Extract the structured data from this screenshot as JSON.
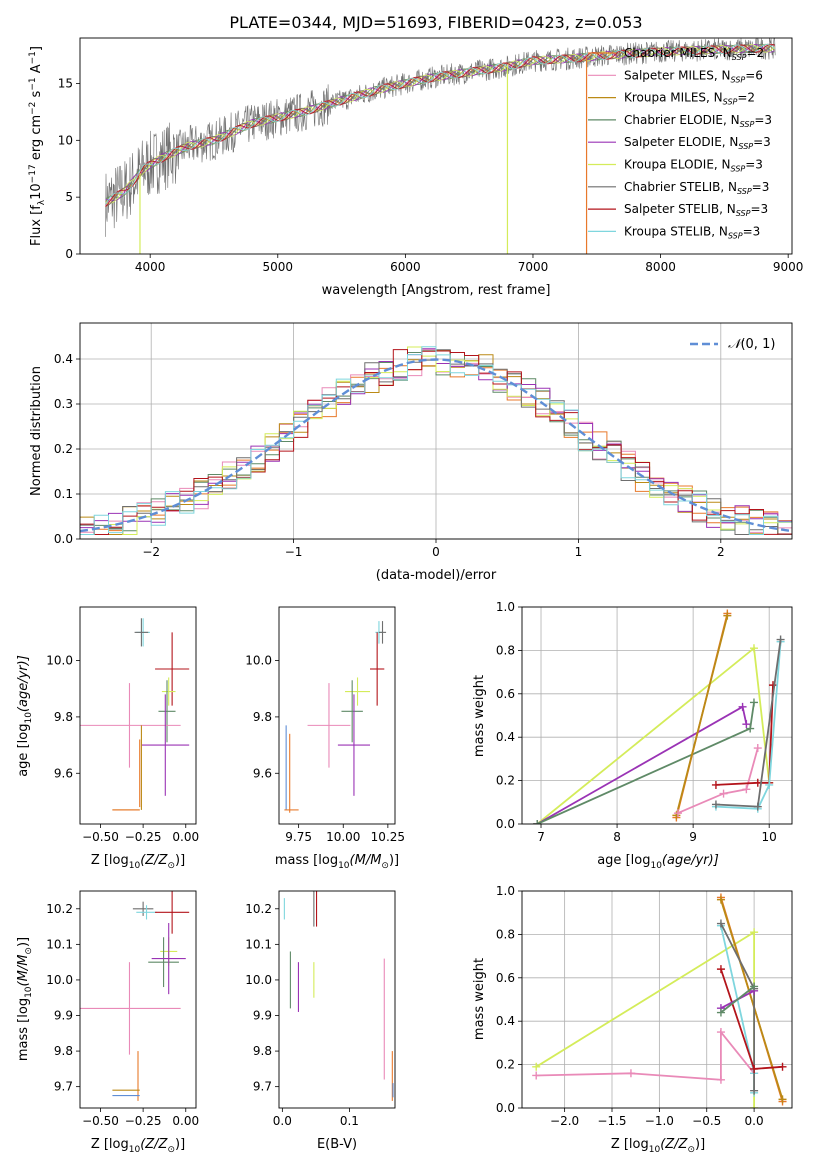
{
  "figure_title": "PLATE=0344, MJD=51693, FIBERID=0423, z=0.053",
  "colors": {
    "orange": "#e8792b",
    "pink": "#e98ab8",
    "olive": "#bb8a16",
    "green": "#5f8a67",
    "purple": "#9a33b5",
    "yellowgreen": "#d4ec5a",
    "gray": "#6e6e6e",
    "darkred": "#b3141b",
    "cyan": "#7fd6de",
    "blue": "#5f8ed6",
    "grid": "#b0b0b0"
  },
  "chart_data": [
    {
      "id": "spectrum",
      "type": "line",
      "xlabel": "wavelength [Angstrom, rest frame]",
      "ylabel": "Flux [f",
      "xlim": [
        3450,
        9030
      ],
      "ylim": [
        0,
        19
      ],
      "xticks": [
        4000,
        5000,
        6000,
        7000,
        8000,
        9000
      ],
      "yticks": [
        0,
        5,
        10,
        15
      ],
      "grid": false,
      "legend_position": "upper-right",
      "legend": [
        {
          "label": "Chabrier MILES, N",
          "sub": "SSP",
          "tail": "=2",
          "color": "orange"
        },
        {
          "label": "Salpeter MILES, N",
          "sub": "SSP",
          "tail": "=6",
          "color": "pink"
        },
        {
          "label": "Kroupa MILES, N",
          "sub": "SSP",
          "tail": "=2",
          "color": "olive"
        },
        {
          "label": "Chabrier ELODIE, N",
          "sub": "SSP",
          "tail": "=3",
          "color": "green"
        },
        {
          "label": "Salpeter ELODIE, N",
          "sub": "SSP",
          "tail": "=3",
          "color": "purple"
        },
        {
          "label": "Kroupa ELODIE, N",
          "sub": "SSP",
          "tail": "=3",
          "color": "yellowgreen"
        },
        {
          "label": "Chabrier STELIB, N",
          "sub": "SSP",
          "tail": "=3",
          "color": "gray"
        },
        {
          "label": "Salpeter STELIB, N",
          "sub": "SSP",
          "tail": "=3",
          "color": "darkred"
        },
        {
          "label": "Kroupa STELIB, N",
          "sub": "SSP",
          "tail": "=3",
          "color": "cyan"
        }
      ],
      "continuum": [
        [
          3650,
          4.5
        ],
        [
          3800,
          5.5
        ],
        [
          3950,
          7.5
        ],
        [
          4100,
          8.5
        ],
        [
          4300,
          9.5
        ],
        [
          4500,
          10.0
        ],
        [
          4800,
          11.5
        ],
        [
          5000,
          12.0
        ],
        [
          5200,
          12.5
        ],
        [
          5500,
          13.5
        ],
        [
          5800,
          14.5
        ],
        [
          6000,
          15.0
        ],
        [
          6200,
          15.5
        ],
        [
          6500,
          16.0
        ],
        [
          6800,
          16.5
        ],
        [
          7000,
          17.0
        ],
        [
          7300,
          17.2
        ],
        [
          7600,
          17.5
        ],
        [
          8000,
          17.8
        ],
        [
          8500,
          18.0
        ],
        [
          8800,
          18.1
        ]
      ],
      "drops": [
        {
          "x": 3920,
          "color": "yellowgreen"
        },
        {
          "x": 6800,
          "color": "yellowgreen"
        },
        {
          "x": 7420,
          "color": "orange"
        }
      ]
    },
    {
      "id": "residual-histogram",
      "type": "histogram",
      "xlabel": "(data-model)/error",
      "ylabel": "Normed distribution",
      "xlim": [
        -2.5,
        2.5
      ],
      "ylim": [
        0,
        0.48
      ],
      "xticks": [
        -2,
        -1,
        0,
        1,
        2
      ],
      "yticks": [
        0.0,
        0.1,
        0.2,
        0.3,
        0.4
      ],
      "grid": true,
      "legend_position": "upper-right",
      "legend_label": "(0, 1)",
      "bin_width": 0.1,
      "series_colors": [
        "orange",
        "pink",
        "olive",
        "green",
        "purple",
        "yellowgreen",
        "gray",
        "darkred",
        "cyan"
      ]
    },
    {
      "id": "age-vs-Z",
      "type": "errorbar",
      "xlabel": "Z [log",
      "xlabel_sub": "10",
      "xlabel_tail": "(Z/Z",
      "xlabel_end": ")]",
      "ylabel": "age  [log",
      "ylabel_sub": "10",
      "ylabel_tail": "(age/yr)]",
      "xlim": [
        -0.62,
        0.06
      ],
      "ylim": [
        9.42,
        10.19
      ],
      "xticks": [
        -0.5,
        -0.25,
        0.0
      ],
      "yticks": [
        9.6,
        9.8,
        10.0
      ],
      "grid": false,
      "points": [
        {
          "x": -0.25,
          "y": 10.1,
          "dx": 0.04,
          "dy": 0.05,
          "color": "cyan"
        },
        {
          "x": -0.26,
          "y": 10.1,
          "dx": 0.04,
          "dy": 0.05,
          "color": "gray"
        },
        {
          "x": -0.08,
          "y": 9.97,
          "dx": 0.1,
          "dy": 0.13,
          "color": "darkred"
        },
        {
          "x": -0.1,
          "y": 9.89,
          "dx": 0.04,
          "dy": 0.05,
          "color": "yellowgreen"
        },
        {
          "x": -0.11,
          "y": 9.82,
          "dx": 0.05,
          "dy": 0.11,
          "color": "green"
        },
        {
          "x": -0.33,
          "y": 9.77,
          "dx": 0.3,
          "dy": 0.15,
          "color": "pink"
        },
        {
          "x": -0.12,
          "y": 9.7,
          "dx": 0.14,
          "dy": 0.18,
          "color": "purple"
        },
        {
          "x": -0.26,
          "y": 9.62,
          "dx": 0.0,
          "dy": 0.15,
          "color": "olive"
        },
        {
          "x": -0.27,
          "y": 9.6,
          "dx": 0.0,
          "dy": 0.12,
          "color": "orange"
        },
        {
          "x": -0.35,
          "y": 9.47,
          "dx": 0.08,
          "dy": 0.0,
          "color": "olive"
        },
        {
          "x": -0.35,
          "y": 9.47,
          "dx": 0.08,
          "dy": 0.0,
          "color": "orange"
        }
      ]
    },
    {
      "id": "age-vs-mass",
      "type": "errorbar",
      "xlabel": "mass [log",
      "xlabel_sub": "10",
      "xlabel_tail": "(M/M",
      "xlabel_end": ")]",
      "ylabel": "",
      "xlim": [
        9.64,
        10.29
      ],
      "ylim": [
        9.42,
        10.19
      ],
      "xticks": [
        9.75,
        10.0,
        10.25
      ],
      "yticks": [
        9.6,
        9.8,
        10.0
      ],
      "grid": false,
      "points": [
        {
          "x": 10.2,
          "y": 10.1,
          "dx": 0.02,
          "dy": 0.04,
          "color": "cyan"
        },
        {
          "x": 10.22,
          "y": 10.1,
          "dx": 0.02,
          "dy": 0.04,
          "color": "gray"
        },
        {
          "x": 10.19,
          "y": 9.97,
          "dx": 0.04,
          "dy": 0.13,
          "color": "darkred"
        },
        {
          "x": 10.08,
          "y": 9.89,
          "dx": 0.07,
          "dy": 0.05,
          "color": "yellowgreen"
        },
        {
          "x": 10.05,
          "y": 9.82,
          "dx": 0.06,
          "dy": 0.11,
          "color": "green"
        },
        {
          "x": 9.92,
          "y": 9.77,
          "dx": 0.12,
          "dy": 0.15,
          "color": "pink"
        },
        {
          "x": 10.06,
          "y": 9.7,
          "dx": 0.09,
          "dy": 0.18,
          "color": "purple"
        },
        {
          "x": 9.68,
          "y": 9.62,
          "dx": 0.0,
          "dy": 0.15,
          "color": "blue"
        },
        {
          "x": 9.7,
          "y": 9.6,
          "dx": 0.0,
          "dy": 0.14,
          "color": "orange"
        },
        {
          "x": 9.71,
          "y": 9.47,
          "dx": 0.04,
          "dy": 0.0,
          "color": "orange"
        }
      ]
    },
    {
      "id": "mass-weight-vs-age",
      "type": "line",
      "xlabel": "age  [log",
      "xlabel_sub": "10",
      "xlabel_tail": "(age/yr)]",
      "ylabel": "mass weight",
      "xlim": [
        6.75,
        10.3
      ],
      "ylim": [
        0,
        1.0
      ],
      "xticks": [
        7,
        8,
        9,
        10
      ],
      "yticks": [
        0.0,
        0.2,
        0.4,
        0.6,
        0.8,
        1.0
      ],
      "grid": true,
      "series": [
        {
          "color": "yellowgreen",
          "points": [
            [
              6.95,
              0.0
            ],
            [
              9.8,
              0.81
            ],
            [
              10.0,
              0.19
            ]
          ]
        },
        {
          "color": "purple",
          "points": [
            [
              6.95,
              0.0
            ],
            [
              9.65,
              0.54
            ],
            [
              9.7,
              0.46
            ]
          ]
        },
        {
          "color": "green",
          "points": [
            [
              6.95,
              0.0
            ],
            [
              9.75,
              0.44
            ],
            [
              9.8,
              0.56
            ]
          ]
        },
        {
          "color": "orange",
          "points": [
            [
              8.78,
              0.03
            ],
            [
              9.45,
              0.97
            ]
          ]
        },
        {
          "color": "olive",
          "points": [
            [
              8.78,
              0.04
            ],
            [
              9.45,
              0.96
            ]
          ]
        },
        {
          "color": "pink",
          "points": [
            [
              8.8,
              0.05
            ],
            [
              9.4,
              0.14
            ],
            [
              9.7,
              0.16
            ],
            [
              9.85,
              0.35
            ]
          ]
        },
        {
          "color": "darkred",
          "points": [
            [
              9.3,
              0.18
            ],
            [
              9.85,
              0.19
            ],
            [
              10.0,
              0.19
            ],
            [
              10.05,
              0.64
            ]
          ]
        },
        {
          "color": "cyan",
          "points": [
            [
              9.3,
              0.08
            ],
            [
              9.85,
              0.07
            ],
            [
              10.0,
              0.18
            ],
            [
              10.15,
              0.84
            ]
          ]
        },
        {
          "color": "gray",
          "points": [
            [
              9.3,
              0.09
            ],
            [
              9.85,
              0.08
            ],
            [
              10.15,
              0.85
            ]
          ]
        }
      ]
    },
    {
      "id": "mass-vs-Z",
      "type": "errorbar",
      "xlabel": "Z [log",
      "xlabel_sub": "10",
      "xlabel_tail": "(Z/Z",
      "xlabel_end": ")]",
      "ylabel": "mass [log",
      "ylabel_sub": "10",
      "ylabel_tail": "(M/M",
      "ylabel_end": ")]",
      "xlim": [
        -0.62,
        0.06
      ],
      "ylim": [
        9.64,
        10.25
      ],
      "xticks": [
        -0.5,
        -0.25,
        0.0
      ],
      "yticks": [
        9.7,
        9.8,
        9.9,
        10.0,
        10.1,
        10.2
      ],
      "grid": false,
      "points": [
        {
          "x": -0.25,
          "y": 10.2,
          "dx": 0.06,
          "dy": 0.02,
          "color": "gray"
        },
        {
          "x": -0.23,
          "y": 10.19,
          "dx": 0.06,
          "dy": 0.02,
          "color": "cyan"
        },
        {
          "x": -0.08,
          "y": 10.19,
          "dx": 0.1,
          "dy": 0.06,
          "color": "darkred"
        },
        {
          "x": -0.1,
          "y": 10.08,
          "dx": 0.05,
          "dy": 0.04,
          "color": "yellowgreen"
        },
        {
          "x": -0.13,
          "y": 10.05,
          "dx": 0.09,
          "dy": 0.07,
          "color": "green"
        },
        {
          "x": -0.1,
          "y": 10.06,
          "dx": 0.1,
          "dy": 0.1,
          "color": "purple"
        },
        {
          "x": -0.33,
          "y": 9.92,
          "dx": 0.3,
          "dy": 0.13,
          "color": "pink"
        },
        {
          "x": -0.28,
          "y": 9.73,
          "dx": 0.0,
          "dy": 0.07,
          "color": "orange"
        },
        {
          "x": -0.35,
          "y": 9.69,
          "dx": 0.08,
          "dy": 0.0,
          "color": "olive"
        },
        {
          "x": -0.35,
          "y": 9.675,
          "dx": 0.08,
          "dy": 0.0,
          "color": "blue"
        }
      ]
    },
    {
      "id": "mass-vs-EBV",
      "type": "errorbar",
      "xlabel": "E(B-V)",
      "ylabel": "",
      "xlim": [
        -0.005,
        0.168
      ],
      "ylim": [
        9.64,
        10.25
      ],
      "xticks": [
        0.0,
        0.1
      ],
      "yticks": [
        9.7,
        9.8,
        9.9,
        10.0,
        10.1,
        10.2
      ],
      "grid": false,
      "points": [
        {
          "x": 0.003,
          "y": 10.2,
          "dx": 0.0,
          "dy": 0.03,
          "color": "cyan"
        },
        {
          "x": 0.047,
          "y": 10.2,
          "dx": 0.0,
          "dy": 0.05,
          "color": "gray"
        },
        {
          "x": 0.051,
          "y": 10.2,
          "dx": 0.0,
          "dy": 0.05,
          "color": "darkred"
        },
        {
          "x": 0.012,
          "y": 10.0,
          "dx": 0.0,
          "dy": 0.08,
          "color": "green"
        },
        {
          "x": 0.024,
          "y": 9.98,
          "dx": 0.0,
          "dy": 0.07,
          "color": "purple"
        },
        {
          "x": 0.047,
          "y": 10.0,
          "dx": 0.0,
          "dy": 0.05,
          "color": "yellowgreen"
        },
        {
          "x": 0.152,
          "y": 9.89,
          "dx": 0.0,
          "dy": 0.17,
          "color": "pink"
        },
        {
          "x": 0.164,
          "y": 9.73,
          "dx": 0.0,
          "dy": 0.07,
          "color": "orange"
        },
        {
          "x": 0.165,
          "y": 9.69,
          "dx": 0.0,
          "dy": 0.02,
          "color": "blue"
        }
      ]
    },
    {
      "id": "mass-weight-vs-Z",
      "type": "line",
      "xlabel": "Z [log",
      "xlabel_sub": "10",
      "xlabel_tail": "(Z/Z",
      "xlabel_end": ")]",
      "ylabel": "mass weight",
      "xlim": [
        -2.45,
        0.4
      ],
      "ylim": [
        0,
        1.0
      ],
      "xticks": [
        -2.0,
        -1.5,
        -1.0,
        -0.5,
        0.0
      ],
      "yticks": [
        0.0,
        0.2,
        0.4,
        0.6,
        0.8,
        1.0
      ],
      "grid": true,
      "series": [
        {
          "color": "yellowgreen",
          "points": [
            [
              -2.3,
              0.19
            ],
            [
              0.0,
              0.81
            ],
            [
              0.0,
              0.0
            ]
          ]
        },
        {
          "color": "pink",
          "points": [
            [
              -2.3,
              0.15
            ],
            [
              -1.3,
              0.16
            ],
            [
              -0.35,
              0.13
            ],
            [
              -0.35,
              0.35
            ],
            [
              0.0,
              0.16
            ]
          ]
        },
        {
          "color": "orange",
          "points": [
            [
              -0.35,
              0.97
            ],
            [
              0.3,
              0.03
            ]
          ]
        },
        {
          "color": "olive",
          "points": [
            [
              -0.35,
              0.96
            ],
            [
              0.3,
              0.04
            ]
          ]
        },
        {
          "color": "cyan",
          "points": [
            [
              -0.35,
              0.84
            ],
            [
              0.0,
              0.16
            ],
            [
              0.0,
              0.07
            ]
          ]
        },
        {
          "color": "gray",
          "points": [
            [
              -0.35,
              0.85
            ],
            [
              0.0,
              0.55
            ],
            [
              0.0,
              0.08
            ]
          ]
        },
        {
          "color": "darkred",
          "points": [
            [
              -0.35,
              0.64
            ],
            [
              0.0,
              0.18
            ],
            [
              0.3,
              0.19
            ]
          ]
        },
        {
          "color": "purple",
          "points": [
            [
              -0.35,
              0.46
            ],
            [
              0.0,
              0.54
            ]
          ]
        },
        {
          "color": "green",
          "points": [
            [
              -0.35,
              0.44
            ],
            [
              0.0,
              0.56
            ]
          ]
        }
      ]
    }
  ]
}
